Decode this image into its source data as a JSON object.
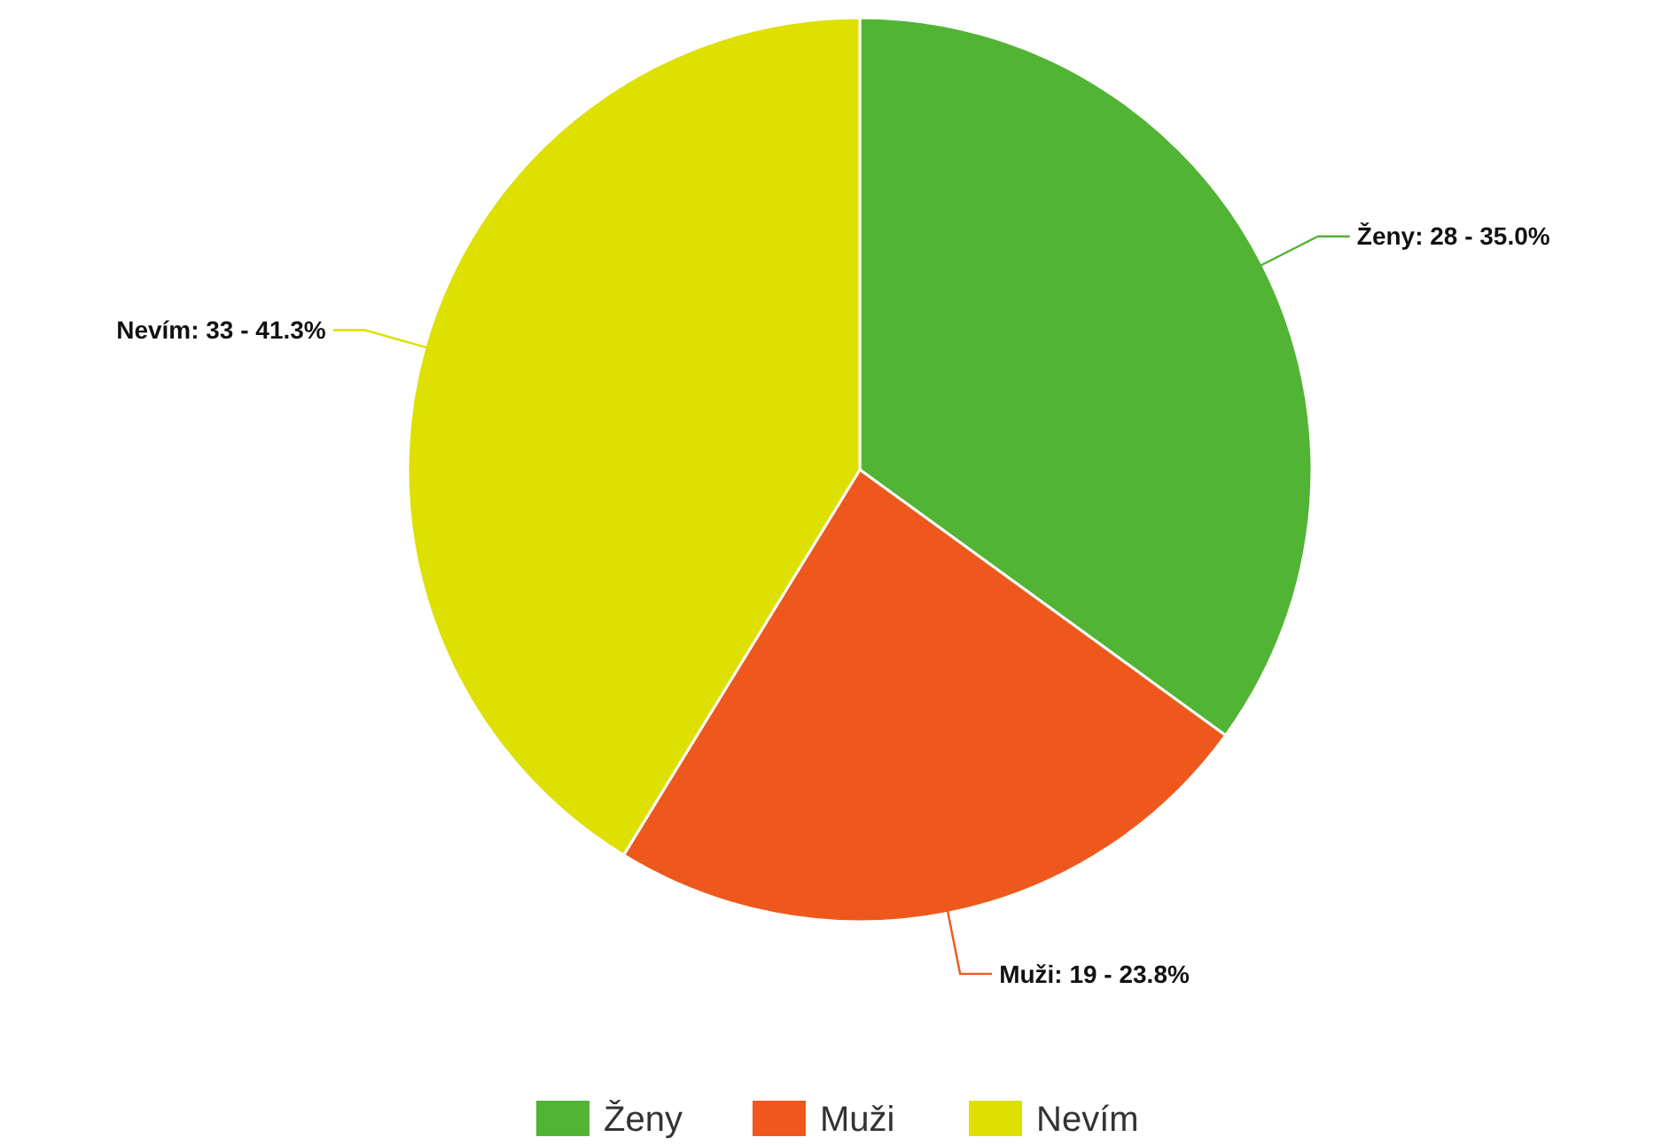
{
  "chart_data": {
    "type": "pie",
    "categories": [
      "Ženy",
      "Muži",
      "Nevím"
    ],
    "values": [
      28,
      19,
      33
    ],
    "colors": [
      "#52b434",
      "#ee581d",
      "#dde000"
    ],
    "value_labels": [
      "Ženy: 28 - 35.0%",
      "Muži: 19 - 23.8%",
      "Nevím: 33 - 41.3%"
    ],
    "legend": "bottom"
  }
}
